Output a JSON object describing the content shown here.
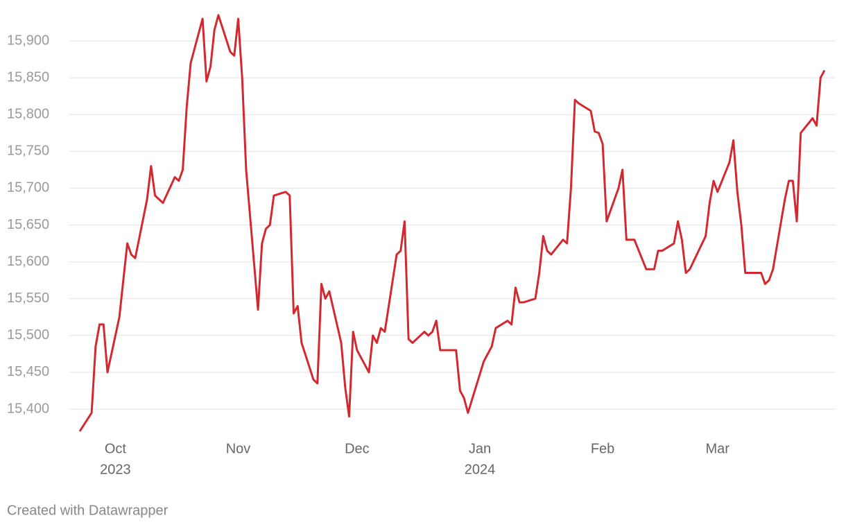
{
  "chart_data": {
    "type": "line",
    "credit": "Created with Datawrapper",
    "x": [
      "2023-09-22",
      "2023-09-25",
      "2023-09-26",
      "2023-09-27",
      "2023-09-28",
      "2023-09-29",
      "2023-10-02",
      "2023-10-04",
      "2023-10-05",
      "2023-10-06",
      "2023-10-09",
      "2023-10-10",
      "2023-10-11",
      "2023-10-13",
      "2023-10-16",
      "2023-10-17",
      "2023-10-18",
      "2023-10-19",
      "2023-10-20",
      "2023-10-23",
      "2023-10-24",
      "2023-10-25",
      "2023-10-26",
      "2023-10-27",
      "2023-10-30",
      "2023-10-31",
      "2023-11-01",
      "2023-11-02",
      "2023-11-03",
      "2023-11-06",
      "2023-11-07",
      "2023-11-08",
      "2023-11-09",
      "2023-11-10",
      "2023-11-13",
      "2023-11-14",
      "2023-11-15",
      "2023-11-16",
      "2023-11-17",
      "2023-11-20",
      "2023-11-21",
      "2023-11-22",
      "2023-11-23",
      "2023-11-24",
      "2023-11-27",
      "2023-11-28",
      "2023-11-29",
      "2023-11-30",
      "2023-12-01",
      "2023-12-04",
      "2023-12-05",
      "2023-12-06",
      "2023-12-07",
      "2023-12-08",
      "2023-12-11",
      "2023-12-12",
      "2023-12-13",
      "2023-12-14",
      "2023-12-15",
      "2023-12-18",
      "2023-12-19",
      "2023-12-20",
      "2023-12-21",
      "2023-12-22",
      "2023-12-26",
      "2023-12-27",
      "2023-12-28",
      "2023-12-29",
      "2024-01-02",
      "2024-01-04",
      "2024-01-05",
      "2024-01-08",
      "2024-01-09",
      "2024-01-10",
      "2024-01-11",
      "2024-01-12",
      "2024-01-15",
      "2024-01-16",
      "2024-01-17",
      "2024-01-18",
      "2024-01-19",
      "2024-01-22",
      "2024-01-23",
      "2024-01-24",
      "2024-01-25",
      "2024-01-26",
      "2024-01-29",
      "2024-01-30",
      "2024-01-31",
      "2024-02-01",
      "2024-02-02",
      "2024-02-05",
      "2024-02-06",
      "2024-02-07",
      "2024-02-09",
      "2024-02-12",
      "2024-02-14",
      "2024-02-15",
      "2024-02-16",
      "2024-02-19",
      "2024-02-20",
      "2024-02-21",
      "2024-02-22",
      "2024-02-23",
      "2024-02-27",
      "2024-02-28",
      "2024-02-29",
      "2024-03-01",
      "2024-03-04",
      "2024-03-05",
      "2024-03-06",
      "2024-03-07",
      "2024-03-08",
      "2024-03-12",
      "2024-03-13",
      "2024-03-14",
      "2024-03-15",
      "2024-03-18",
      "2024-03-19",
      "2024-03-20",
      "2024-03-21",
      "2024-03-22",
      "2024-03-25",
      "2024-03-26",
      "2024-03-27",
      "2024-03-28"
    ],
    "series": [
      {
        "color": "#d3282f",
        "values": [
          15370,
          15395,
          15485,
          15515,
          15515,
          15450,
          15525,
          15625,
          15610,
          15605,
          15685,
          15730,
          15690,
          15680,
          15715,
          15710,
          15725,
          15810,
          15870,
          15930,
          15845,
          15865,
          15915,
          15935,
          15885,
          15880,
          15930,
          15850,
          15725,
          15535,
          15625,
          15645,
          15650,
          15690,
          15695,
          15690,
          15530,
          15540,
          15490,
          15440,
          15435,
          15570,
          15550,
          15560,
          15490,
          15430,
          15390,
          15505,
          15480,
          15450,
          15500,
          15490,
          15510,
          15505,
          15610,
          15615,
          15655,
          15495,
          15490,
          15505,
          15500,
          15505,
          15520,
          15480,
          15480,
          15425,
          15415,
          15395,
          15465,
          15485,
          15510,
          15520,
          15515,
          15565,
          15545,
          15545,
          15550,
          15585,
          15635,
          15615,
          15610,
          15630,
          15625,
          15700,
          15820,
          15815,
          15805,
          15777,
          15775,
          15760,
          15655,
          15700,
          15725,
          15630,
          15630,
          15590,
          15590,
          15615,
          15615,
          15625,
          15655,
          15630,
          15585,
          15590,
          15635,
          15680,
          15710,
          15695,
          15735,
          15765,
          15695,
          15650,
          15585,
          15585,
          15570,
          15575,
          15590,
          15685,
          15710,
          15710,
          15655,
          15775,
          15795,
          15785,
          15850,
          15860
        ]
      }
    ],
    "xlim": [
      "2023-09-22",
      "2024-03-28"
    ],
    "xticks": [
      {
        "value": "2023-10-01",
        "label": "Oct",
        "sublabel": "2023"
      },
      {
        "value": "2023-11-01",
        "label": "Nov"
      },
      {
        "value": "2023-12-01",
        "label": "Dec"
      },
      {
        "value": "2024-01-01",
        "label": "Jan",
        "sublabel": "2024"
      },
      {
        "value": "2024-02-01",
        "label": "Feb"
      },
      {
        "value": "2024-03-01",
        "label": "Mar"
      }
    ],
    "ylim": [
      15360,
      15940
    ],
    "yticks": [
      {
        "value": 15400,
        "label": "15,400"
      },
      {
        "value": 15450,
        "label": "15,450"
      },
      {
        "value": 15500,
        "label": "15,500"
      },
      {
        "value": 15550,
        "label": "15,550"
      },
      {
        "value": 15600,
        "label": "15,600"
      },
      {
        "value": 15650,
        "label": "15,650"
      },
      {
        "value": 15700,
        "label": "15,700"
      },
      {
        "value": 15750,
        "label": "15,750"
      },
      {
        "value": 15800,
        "label": "15,800"
      },
      {
        "value": 15850,
        "label": "15,850"
      },
      {
        "value": 15900,
        "label": "15,900"
      }
    ],
    "grid": true
  }
}
